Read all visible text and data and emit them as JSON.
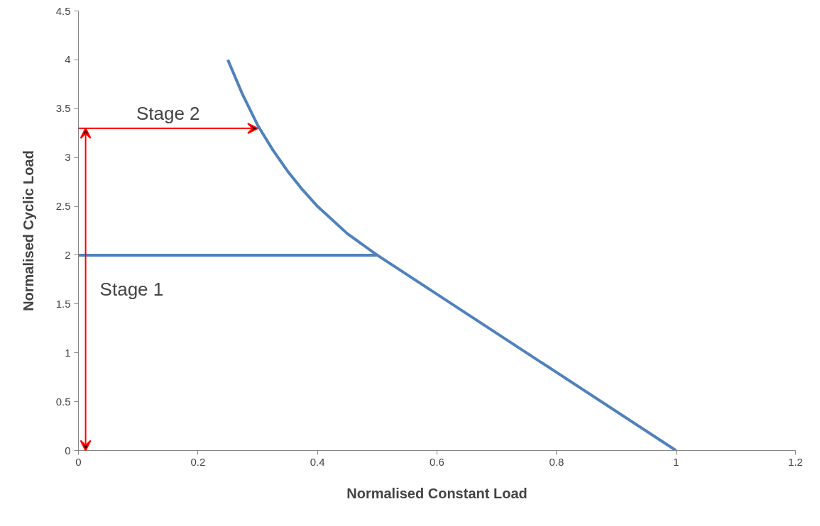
{
  "chart_data": {
    "type": "line",
    "xlabel": "Normalised Constant Load",
    "ylabel": "Normalised Cyclic Load",
    "xlim": [
      0,
      1.2
    ],
    "xticks": [
      0,
      0.2,
      0.4,
      0.6,
      0.8,
      1,
      1.2
    ],
    "ylim": [
      0,
      4.5
    ],
    "yticks": [
      0,
      0.5,
      1,
      1.5,
      2,
      2.5,
      3,
      3.5,
      4,
      4.5
    ],
    "grid": false,
    "line_style": "solid",
    "marker": "none",
    "series": [
      {
        "color": "#4f81bd",
        "x": [
          0,
          0.5,
          1
        ],
        "values": [
          2,
          2,
          0
        ]
      },
      {
        "color": "#4f81bd",
        "x": [
          0.25,
          0.275,
          0.3,
          0.325,
          0.35,
          0.375,
          0.4,
          0.45,
          0.5
        ],
        "values": [
          4,
          3.64,
          3.33,
          3.08,
          2.86,
          2.67,
          2.5,
          2.22,
          2
        ]
      }
    ],
    "annotations": [
      "Stage 2",
      "Stage 1"
    ]
  }
}
